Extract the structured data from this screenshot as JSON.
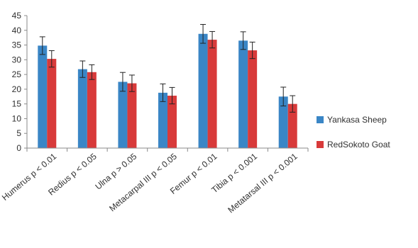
{
  "chart_data": {
    "type": "bar",
    "title": "",
    "xlabel": "",
    "ylabel": "",
    "ylim": [
      0,
      45
    ],
    "yticks": [
      0,
      5,
      10,
      15,
      20,
      25,
      30,
      35,
      40,
      45
    ],
    "grid": false,
    "legend_position": "right",
    "categories": [
      "Humerus p < 0.01",
      "Redius p < 0.05",
      "Ulna p > 0.05",
      "Metacarpal III p < 0.05",
      "Femur p < 0.01",
      "Tibia p < 0.001",
      "Metatarsal III p < 0.001"
    ],
    "series": [
      {
        "name": "Yankasa Sheep",
        "color": "#3a86c6",
        "values": [
          34.8,
          26.8,
          22.5,
          18.8,
          38.8,
          36.5,
          17.5
        ],
        "errors": [
          3.0,
          2.8,
          3.2,
          3.0,
          3.2,
          3.0,
          3.2
        ]
      },
      {
        "name": "RedSokoto Goat",
        "color": "#d83a3a",
        "values": [
          30.3,
          25.8,
          22.0,
          17.8,
          36.8,
          33.2,
          15.0
        ],
        "errors": [
          2.8,
          2.5,
          2.8,
          2.8,
          2.8,
          2.8,
          2.8
        ]
      }
    ]
  }
}
